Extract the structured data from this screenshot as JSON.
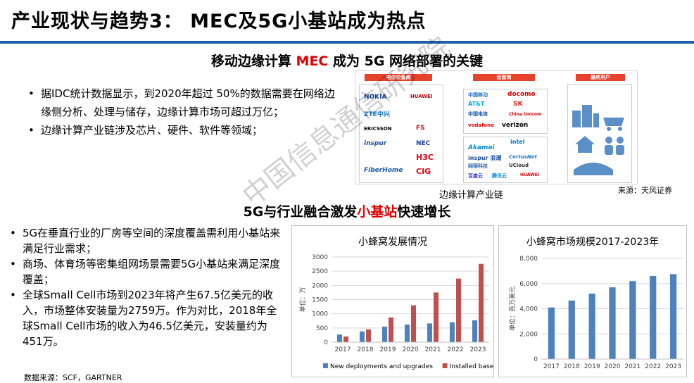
{
  "title": "产业现状与趋势3： MEC及5G小基站成为热点",
  "section1": {
    "heading_pre": "移动边缘计算 ",
    "heading_red": "MEC",
    "heading_post": " 成为 5G 网络部署的关键",
    "bullets": [
      "据IDC统计数据显示，到2020年超过 50%的数据需要在网络边缘侧分析、处理与储存，边缘计算市场可超过万亿；",
      "边缘计算产业链涉及芯片、硬件、软件等领域；"
    ],
    "diagram": {
      "col1_tag": "电信设备商",
      "col2_tag": "运营商",
      "col3_tag": "最终用户",
      "col1_logos": [
        "NOKIA",
        "HUAWEI",
        "ZTE中兴",
        "ERICSSON",
        "FS",
        "inspur",
        "NEC",
        "H3C",
        "FiberHome",
        "CIG"
      ],
      "col2_logos": [
        "中国移动",
        "docomo",
        "AT&T",
        "SK",
        "中国电信",
        "China Unicom",
        "vodafone",
        "verizon"
      ],
      "col2b_logos": [
        "Akamai",
        "intel",
        "inspur 浪潮",
        "CertusNet",
        "网宿科技",
        "UCloud",
        "百度云",
        "腾讯云",
        "HUAWEI"
      ],
      "caption": "边缘计算产业链",
      "source": "来源：天风证券"
    }
  },
  "section2": {
    "heading_pre": "5G与行业融合激发",
    "heading_red": "小基站",
    "heading_post": "快速增长",
    "bullets": [
      "5G在垂直行业的厂房等空间的深度覆盖需利用小基站来满足行业需求；",
      "商场、体育场等密集组网场景需要5G小基站来满足深度覆盖；",
      "全球Small Cell市场到2023年将产生67.5亿美元的收入，市场整体安装量为2759万。作为对比，2018年全球Small Cell市场的收入为46.5亿美元，安装量约为451万。"
    ],
    "source": "数据来源：SCF，GARTNER"
  },
  "watermark": "中国信息通信研究院",
  "colors": {
    "blue_bar": "#4f81bd",
    "red_bar": "#c0504d",
    "accent": "#1f5fa8",
    "red_text": "#e00000"
  },
  "chart_data": [
    {
      "type": "bar",
      "title": "小蜂窝发展情况",
      "ylabel": "单位：万",
      "categories": [
        "2017",
        "2018",
        "2019",
        "2020",
        "2021",
        "2022",
        "2023"
      ],
      "ylim": [
        0,
        3000
      ],
      "yticks": [
        "0",
        "500",
        "1000",
        "1500",
        "2000",
        "2500",
        "3000"
      ],
      "series": [
        {
          "name": "New deployments and upgrades",
          "values": [
            270,
            380,
            550,
            620,
            660,
            700,
            770
          ]
        },
        {
          "name": "Installed base",
          "values": [
            200,
            451,
            870,
            1300,
            1750,
            2240,
            2759
          ]
        }
      ],
      "legend": "bottom"
    },
    {
      "type": "bar",
      "title": "小蜂窝市场规模2017-2023年",
      "ylabel": "单位：百万美元",
      "categories": [
        "2017",
        "2018",
        "2019",
        "2020",
        "2021",
        "2022",
        "2023"
      ],
      "ylim": [
        0,
        8000
      ],
      "yticks": [
        "0",
        "2,000",
        "4,000",
        "6,000",
        "8,000"
      ],
      "series": [
        {
          "values": [
            4100,
            4650,
            5200,
            5700,
            6200,
            6600,
            6750
          ]
        }
      ]
    }
  ]
}
